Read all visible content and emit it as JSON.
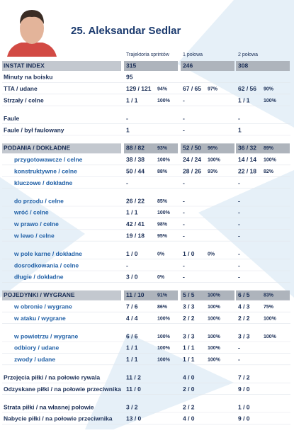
{
  "header": {
    "name": "25. Aleksandar Sedlar",
    "columns": [
      "Trajektoria sprintów",
      "1 połowa",
      "2 połowa"
    ]
  },
  "table": {
    "groups": [
      [
        {
          "label": "INSTAT INDEX",
          "cells": [
            [
              "315"
            ],
            [
              "246"
            ],
            [
              "308"
            ]
          ]
        },
        {
          "label": "Minuty na boisku",
          "cells": [
            [
              "95"
            ]
          ]
        },
        {
          "label": "TTA / udane",
          "cells": [
            [
              "129 / 121",
              "94%"
            ],
            [
              "67 / 65",
              "97%"
            ],
            [
              "62 / 56",
              "90%"
            ]
          ]
        },
        {
          "label": "Strzały / celne",
          "cells": [
            [
              "1 / 1",
              "100%"
            ],
            [
              "-"
            ],
            [
              "1 / 1",
              "100%"
            ]
          ]
        }
      ],
      [
        {
          "label": "Faule",
          "cells": [
            [
              "-"
            ],
            [
              "-"
            ],
            [
              "-"
            ]
          ]
        },
        {
          "label": "Faule / był faulowany",
          "cells": [
            [
              "1"
            ],
            [
              "-"
            ],
            [
              "1"
            ]
          ]
        }
      ],
      [
        {
          "label": "PODANIA / DOKŁADNE",
          "cells": [
            [
              "88 / 82",
              "93%"
            ],
            [
              "52 / 50",
              "96%"
            ],
            [
              "36 / 32",
              "89%"
            ]
          ]
        },
        {
          "label": "przygotowawcze / celne",
          "cells": [
            [
              "38 / 38",
              "100%"
            ],
            [
              "24 / 24",
              "100%"
            ],
            [
              "14 / 14",
              "100%"
            ]
          ]
        },
        {
          "label": "konstruktywne / celne",
          "cells": [
            [
              "50 / 44",
              "88%"
            ],
            [
              "28 / 26",
              "93%"
            ],
            [
              "22 / 18",
              "82%"
            ]
          ]
        },
        {
          "label": "kluczowe / dokładne",
          "cells": [
            [
              "-"
            ],
            [
              "-"
            ],
            [
              "-"
            ]
          ]
        }
      ],
      [
        {
          "label": "do przodu / celne",
          "cells": [
            [
              "26 / 22",
              "85%"
            ],
            [
              "-"
            ],
            [
              "-"
            ]
          ]
        },
        {
          "label": "wróć / celne",
          "cells": [
            [
              "1 / 1",
              "100%"
            ],
            [
              "-"
            ],
            [
              "-"
            ]
          ]
        },
        {
          "label": "w prawo / celne",
          "cells": [
            [
              "42 / 41",
              "98%"
            ],
            [
              "-"
            ],
            [
              "-"
            ]
          ]
        },
        {
          "label": "w lewo / celne",
          "cells": [
            [
              "19 / 18",
              "95%"
            ],
            [
              "-"
            ],
            [
              "-"
            ]
          ]
        }
      ],
      [
        {
          "label": "w pole karne / dokładne",
          "cells": [
            [
              "1 / 0",
              "0%"
            ],
            [
              "1 / 0",
              "0%"
            ],
            [
              "-"
            ]
          ]
        },
        {
          "label": "dosrodkowania / celne",
          "cells": [
            [
              "-"
            ],
            [
              "-"
            ],
            [
              "-"
            ]
          ]
        },
        {
          "label": "długie / dokładne",
          "cells": [
            [
              "3 / 0",
              "0%"
            ],
            [
              "-"
            ],
            [
              "-"
            ]
          ]
        }
      ],
      [
        {
          "label": "POJEDYNKI / WYGRANE",
          "cells": [
            [
              "11 / 10",
              "91%"
            ],
            [
              "5 / 5",
              "100%"
            ],
            [
              "6 / 5",
              "83%"
            ]
          ]
        },
        {
          "label": "w obronie / wygrane",
          "cells": [
            [
              "7 / 6",
              "86%"
            ],
            [
              "3 / 3",
              "100%"
            ],
            [
              "4 / 3",
              "75%"
            ]
          ]
        },
        {
          "label": "w ataku / wygrane",
          "cells": [
            [
              "4 / 4",
              "100%"
            ],
            [
              "2 / 2",
              "100%"
            ],
            [
              "2 / 2",
              "100%"
            ]
          ]
        }
      ],
      [
        {
          "label": "w powietrzu / wygrane",
          "cells": [
            [
              "6 / 6",
              "100%"
            ],
            [
              "3 / 3",
              "100%"
            ],
            [
              "3 / 3",
              "100%"
            ]
          ]
        },
        {
          "label": "odbiory / udane",
          "cells": [
            [
              "1 / 1",
              "100%"
            ],
            [
              "1 / 1",
              "100%"
            ],
            [
              "-"
            ]
          ]
        },
        {
          "label": "zwody / udane",
          "cells": [
            [
              "1 / 1",
              "100%"
            ],
            [
              "1 / 1",
              "100%"
            ],
            [
              "-"
            ]
          ]
        }
      ],
      [
        {
          "label": "Przejęcia piłki / na połowie rywala",
          "cells": [
            [
              "11 / 2"
            ],
            [
              "4 / 0"
            ],
            [
              "7 / 2"
            ]
          ]
        },
        {
          "label": "Odzyskane piłki / na połowie przeciwnika",
          "cells": [
            [
              "11 / 0"
            ],
            [
              "2 / 0"
            ],
            [
              "9 / 0"
            ]
          ]
        }
      ],
      [
        {
          "label": "Strata piłki / na własnej połowie",
          "cells": [
            [
              "3 / 2"
            ],
            [
              "2 / 2"
            ],
            [
              "1 / 0"
            ]
          ]
        },
        {
          "label": "Nabycie piłki / na połowie przeciwnika",
          "cells": [
            [
              "13 / 0"
            ],
            [
              "4 / 0"
            ],
            [
              "9 / 0"
            ]
          ]
        }
      ]
    ]
  }
}
